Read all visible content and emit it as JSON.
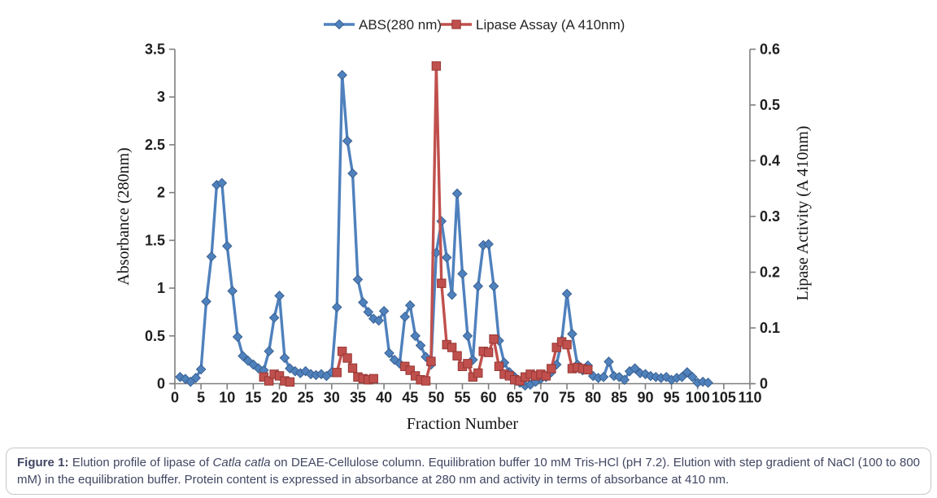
{
  "chart_data": {
    "type": "line",
    "title": "",
    "legend_position": "top",
    "grid": false,
    "background": "#FFFFFF",
    "axis_color": "#7F7F7F",
    "x_axis": {
      "label": "Fraction Number",
      "min": 0,
      "max": 110,
      "ticks": [
        0,
        5,
        10,
        15,
        20,
        25,
        30,
        35,
        40,
        45,
        50,
        55,
        60,
        65,
        70,
        75,
        80,
        85,
        90,
        95,
        100,
        105,
        110
      ]
    },
    "y_axis_left": {
      "label": "Absorbance (280nm)",
      "min": 0,
      "max": 3.5,
      "ticks": [
        "0",
        "0.5",
        "1",
        "1.5",
        "2",
        "2.5",
        "3",
        "3.5"
      ]
    },
    "y_axis_right": {
      "label": "Lipase Activity (A 410nm)",
      "min": 0,
      "max": 0.6,
      "ticks": [
        "0",
        "0.1",
        "0.2",
        "0.3",
        "0.4",
        "0.5",
        "0.6"
      ]
    },
    "series": [
      {
        "name": "ABS(280 nm)",
        "axis": "left",
        "color": "#4F81BD",
        "marker": "diamond",
        "marker_border": "#3A6191",
        "x": [
          1,
          2,
          3,
          4,
          5,
          6,
          7,
          8,
          9,
          10,
          11,
          12,
          13,
          14,
          15,
          16,
          17,
          18,
          19,
          20,
          21,
          22,
          23,
          24,
          25,
          26,
          27,
          28,
          29,
          30,
          31,
          32,
          33,
          34,
          35,
          36,
          37,
          38,
          39,
          40,
          41,
          42,
          43,
          44,
          45,
          46,
          47,
          48,
          49,
          50,
          51,
          52,
          53,
          54,
          55,
          56,
          57,
          58,
          59,
          60,
          61,
          62,
          63,
          64,
          65,
          66,
          67,
          68,
          69,
          70,
          71,
          72,
          73,
          74,
          75,
          76,
          77,
          78,
          79,
          80,
          81,
          82,
          83,
          84,
          85,
          86,
          87,
          88,
          89,
          90,
          91,
          92,
          93,
          94,
          95,
          96,
          97,
          98,
          99,
          100,
          101,
          102
        ],
        "y": [
          0.07,
          0.05,
          0.02,
          0.06,
          0.15,
          0.86,
          1.33,
          2.08,
          2.1,
          1.44,
          0.97,
          0.49,
          0.29,
          0.24,
          0.2,
          0.16,
          0.14,
          0.34,
          0.69,
          0.92,
          0.27,
          0.16,
          0.13,
          0.11,
          0.13,
          0.1,
          0.09,
          0.1,
          0.08,
          0.12,
          0.8,
          3.23,
          2.54,
          2.2,
          1.09,
          0.85,
          0.75,
          0.68,
          0.66,
          0.76,
          0.32,
          0.25,
          0.21,
          0.7,
          0.82,
          0.5,
          0.4,
          0.28,
          0.2,
          1.37,
          1.7,
          1.32,
          0.93,
          1.99,
          1.15,
          0.5,
          0.25,
          1.02,
          1.45,
          1.46,
          1.02,
          0.45,
          0.22,
          0.12,
          0.07,
          0.01,
          -0.02,
          -0.01,
          0.02,
          0.05,
          0.07,
          0.12,
          0.2,
          0.45,
          0.94,
          0.52,
          0.2,
          0.14,
          0.19,
          0.08,
          0.06,
          0.07,
          0.23,
          0.08,
          0.07,
          0.04,
          0.13,
          0.16,
          0.11,
          0.1,
          0.08,
          0.07,
          0.06,
          0.07,
          0.04,
          0.06,
          0.07,
          0.12,
          0.07,
          0.01,
          0.02,
          0.01
        ]
      },
      {
        "name": "Lipase Assay (A 410nm)",
        "axis": "right",
        "color": "#C0504D",
        "marker": "square",
        "marker_border": "#963634",
        "points": [
          [
            17,
            0.012
          ],
          [
            18,
            0.005
          ],
          [
            19,
            0.017
          ],
          [
            20,
            0.014
          ],
          [
            21,
            0.005
          ],
          [
            22,
            0.003
          ],
          [
            31,
            0.02
          ],
          [
            32,
            0.058
          ],
          [
            33,
            0.046
          ],
          [
            34,
            0.028
          ],
          [
            35,
            0.012
          ],
          [
            36,
            0.009
          ],
          [
            37,
            0.007
          ],
          [
            38,
            0.009
          ],
          [
            44,
            0.031
          ],
          [
            45,
            0.024
          ],
          [
            46,
            0.014
          ],
          [
            47,
            0.007
          ],
          [
            48,
            0.005
          ],
          [
            49,
            0.04
          ],
          [
            50,
            0.57
          ],
          [
            51,
            0.18
          ],
          [
            52,
            0.07
          ],
          [
            53,
            0.065
          ],
          [
            54,
            0.05
          ],
          [
            55,
            0.031
          ],
          [
            56,
            0.036
          ],
          [
            57,
            0.012
          ],
          [
            58,
            0.019
          ],
          [
            59,
            0.058
          ],
          [
            60,
            0.056
          ],
          [
            61,
            0.08
          ],
          [
            62,
            0.031
          ],
          [
            63,
            0.017
          ],
          [
            64,
            0.014
          ],
          [
            65,
            0.007
          ],
          [
            66,
            0.005
          ],
          [
            67,
            0.012
          ],
          [
            68,
            0.017
          ],
          [
            69,
            0.014
          ],
          [
            70,
            0.017
          ],
          [
            71,
            0.014
          ],
          [
            72,
            0.027
          ],
          [
            73,
            0.065
          ],
          [
            74,
            0.075
          ],
          [
            75,
            0.07
          ],
          [
            76,
            0.027
          ],
          [
            77,
            0.029
          ],
          [
            78,
            0.027
          ],
          [
            79,
            0.025
          ]
        ]
      }
    ]
  },
  "caption": {
    "figure_label": "Figure 1:",
    "pre_italic": " Elution profile of lipase of ",
    "species": "Catla catla",
    "post_italic": " on DEAE-Cellulose column. Equilibration buffer 10 mM Tris-HCl (pH 7.2). Elution with step gradient of NaCl (100 to 800 mM) in the equilibration buffer. Protein content is expressed in absorbance at 280 nm and activity in terms of absorbance at 410 nm."
  }
}
